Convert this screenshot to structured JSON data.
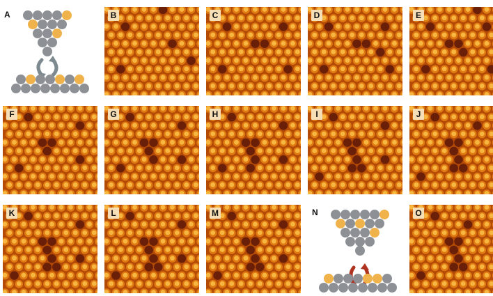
{
  "panels": [
    {
      "id": "A",
      "label": "A",
      "kind": "diagram"
    },
    {
      "id": "B",
      "label": "B",
      "kind": "stm"
    },
    {
      "id": "C",
      "label": "C",
      "kind": "stm"
    },
    {
      "id": "D",
      "label": "D",
      "kind": "stm"
    },
    {
      "id": "E",
      "label": "E",
      "kind": "stm"
    },
    {
      "id": "F",
      "label": "F",
      "kind": "stm"
    },
    {
      "id": "G",
      "label": "G",
      "kind": "stm"
    },
    {
      "id": "H",
      "label": "H",
      "kind": "stm"
    },
    {
      "id": "I",
      "label": "I",
      "kind": "stm"
    },
    {
      "id": "J",
      "label": "J",
      "kind": "stm"
    },
    {
      "id": "K",
      "label": "K",
      "kind": "stm"
    },
    {
      "id": "L",
      "label": "L",
      "kind": "stm"
    },
    {
      "id": "M",
      "label": "M",
      "kind": "stm"
    },
    {
      "id": "N",
      "label": "N",
      "kind": "diagram"
    },
    {
      "id": "O",
      "label": "O",
      "kind": "stm"
    }
  ],
  "colors": {
    "surface_bright": "#f7b640",
    "surface_mid": "#e07a12",
    "surface_dark": "#b34a06",
    "vacancy": "#6a1f08",
    "atom_gray": "#8d9196",
    "atom_gold": "#f0b24a",
    "arrow_gray": "#7d8a90",
    "arrow_red": "#b0331f"
  }
}
